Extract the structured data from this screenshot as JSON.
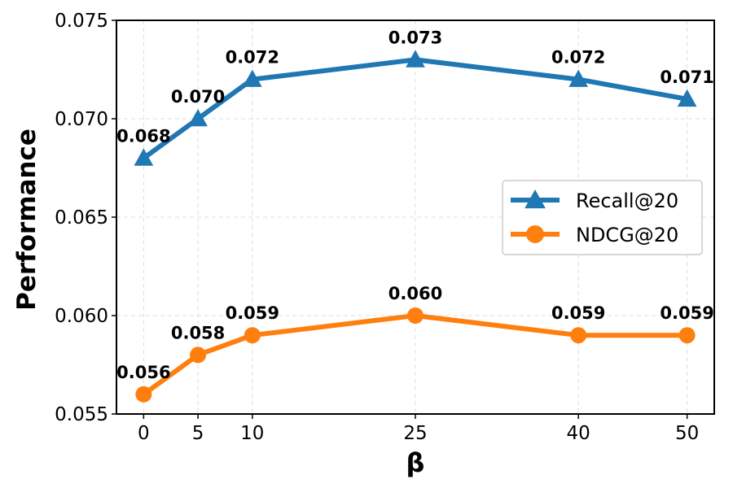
{
  "chart_data": {
    "type": "line",
    "title": "",
    "xlabel": "β",
    "ylabel": "Performance",
    "x": [
      0,
      5,
      10,
      25,
      40,
      50
    ],
    "xticks": [
      "0",
      "5",
      "10",
      "25",
      "40",
      "50"
    ],
    "xlim": [
      -2.5,
      52.5
    ],
    "ylim": [
      0.055,
      0.075
    ],
    "yticks": [
      "0.055",
      "0.060",
      "0.065",
      "0.070",
      "0.075"
    ],
    "grid": true,
    "legend_position": "center-right",
    "series": [
      {
        "name": "Recall@20",
        "marker": "triangle",
        "color": "#1f77b4",
        "values": [
          0.068,
          0.07,
          0.072,
          0.073,
          0.072,
          0.071
        ],
        "labels": [
          "0.068",
          "0.070",
          "0.072",
          "0.073",
          "0.072",
          "0.071"
        ]
      },
      {
        "name": "NDCG@20",
        "marker": "circle",
        "color": "#ff7f0e",
        "values": [
          0.056,
          0.058,
          0.059,
          0.06,
          0.059,
          0.059
        ],
        "labels": [
          "0.056",
          "0.058",
          "0.059",
          "0.060",
          "0.059",
          "0.059"
        ]
      }
    ]
  }
}
